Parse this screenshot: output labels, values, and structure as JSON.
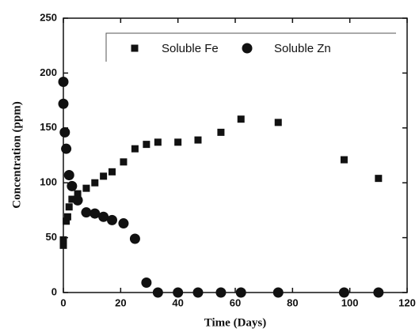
{
  "chart_data": {
    "type": "scatter",
    "xlabel": "Time (Days)",
    "ylabel": "Concentration (ppm)",
    "xlim": [
      0,
      120
    ],
    "xticks": [
      0,
      20,
      40,
      60,
      80,
      100,
      120
    ],
    "ylim": [
      0,
      250
    ],
    "yticks": [
      0,
      50,
      100,
      150,
      200,
      250
    ],
    "series": [
      {
        "name": "Soluble Fe",
        "color": "#111111",
        "marker": "square",
        "x": [
          0,
          0,
          1,
          1.5,
          2,
          3,
          5,
          8,
          11,
          14,
          17,
          21,
          25,
          29,
          33,
          40,
          47,
          55,
          62,
          75,
          98,
          110
        ],
        "values": [
          43,
          48,
          65,
          69,
          78,
          85,
          90,
          95,
          100,
          106,
          110,
          119,
          131,
          135,
          137,
          137,
          139,
          146,
          158,
          155,
          121,
          104
        ]
      },
      {
        "name": "Soluble Zn",
        "color": "#111111",
        "marker": "circle",
        "x": [
          0,
          0,
          0.5,
          1,
          2,
          3,
          5,
          8,
          11,
          14,
          17,
          21,
          25,
          29,
          33,
          40,
          47,
          55,
          62,
          75,
          98,
          110
        ],
        "values": [
          192,
          172,
          146,
          131,
          107,
          97,
          84,
          73,
          72,
          69,
          66,
          63,
          49,
          9,
          0,
          0,
          0,
          0,
          0,
          0,
          0,
          0
        ]
      }
    ]
  }
}
